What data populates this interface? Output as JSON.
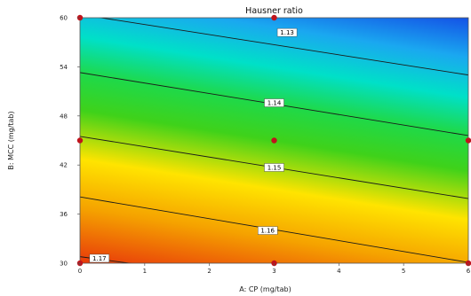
{
  "chart_data": {
    "type": "contour",
    "title": "Hausner ratio",
    "xlabel": "A: CP (mg/tab)",
    "ylabel": "B: MCC (mg/tab)",
    "xlim": [
      0,
      6
    ],
    "ylim": [
      30,
      60
    ],
    "x_ticks": [
      0,
      1,
      2,
      3,
      4,
      5,
      6
    ],
    "y_ticks": [
      30,
      36,
      42,
      48,
      54,
      60
    ],
    "x_tick_labels": [
      "0",
      "1",
      "2",
      "3",
      "4",
      "5",
      "6"
    ],
    "y_tick_labels": [
      "30",
      "36",
      "42",
      "48",
      "54",
      "60"
    ],
    "response_range": [
      1.125,
      1.172
    ],
    "colormap": [
      "#e8390a",
      "#f5a200",
      "#ffe400",
      "#3fd21a",
      "#1ed94a",
      "#00e0c8",
      "#1aa8f0",
      "#1452e6"
    ],
    "contours": [
      {
        "label": "1.13",
        "value": 1.13,
        "y_at_x0": 60.4,
        "y_at_x6": 53.0,
        "label_x": 3.2,
        "label_y": 58.2
      },
      {
        "label": "1.14",
        "value": 1.14,
        "y_at_x0": 53.3,
        "y_at_x6": 45.6,
        "label_x": 3.0,
        "label_y": 49.6
      },
      {
        "label": "1.15",
        "value": 1.15,
        "y_at_x0": 45.5,
        "y_at_x6": 37.9,
        "label_x": 3.0,
        "label_y": 41.7
      },
      {
        "label": "1.16",
        "value": 1.16,
        "y_at_x0": 38.1,
        "y_at_x6": 30.1,
        "label_x": 2.9,
        "label_y": 34.0
      },
      {
        "label": "1.17",
        "value": 1.17,
        "y_at_x0": 30.8,
        "y_at_x6": 24.5,
        "label_x": 0.3,
        "label_y": 30.6
      }
    ],
    "design_points": [
      {
        "x": 0,
        "y": 30
      },
      {
        "x": 3,
        "y": 30
      },
      {
        "x": 6,
        "y": 30
      },
      {
        "x": 0,
        "y": 45
      },
      {
        "x": 3,
        "y": 45
      },
      {
        "x": 6,
        "y": 45
      },
      {
        "x": 0,
        "y": 60
      },
      {
        "x": 3,
        "y": 60
      }
    ],
    "point_color": "#c0141c",
    "contour_color": "#1a1a1a"
  }
}
